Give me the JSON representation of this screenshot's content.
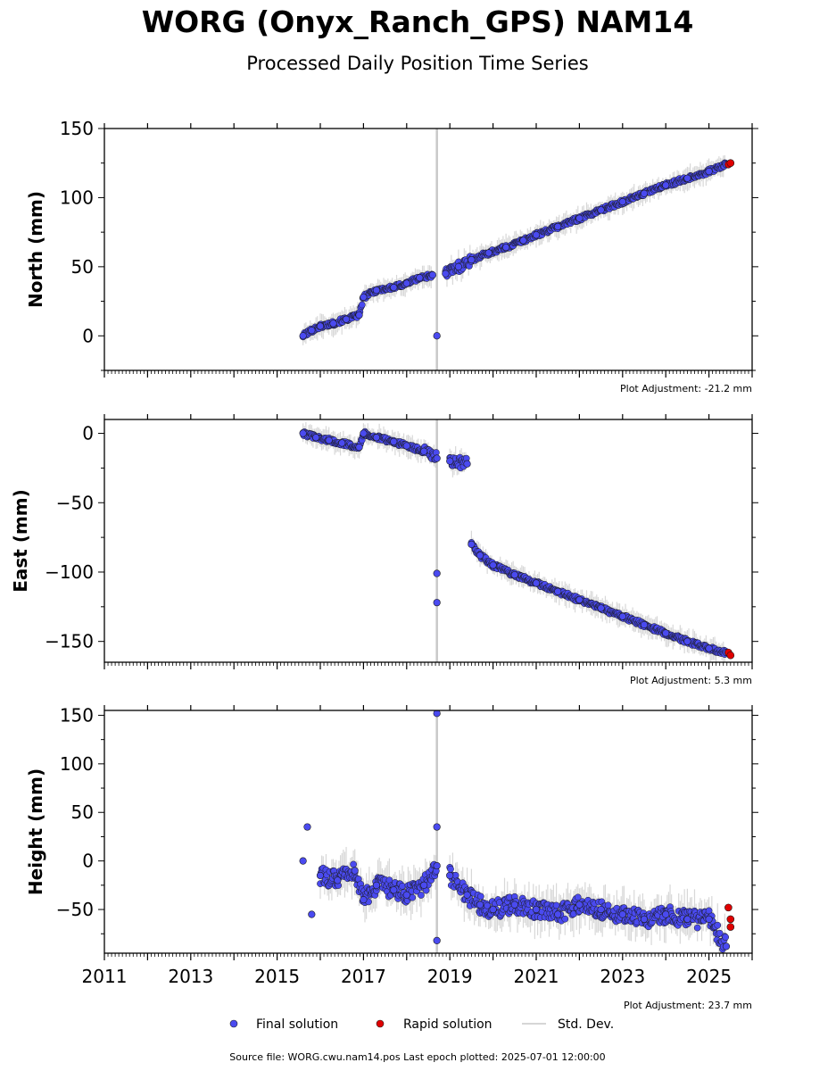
{
  "title": "WORG (Onyx_Ranch_GPS) NAM14",
  "subtitle": "Processed Daily Position Time Series",
  "legend": {
    "final": "Final solution",
    "rapid": "Rapid solution",
    "stddev": "Std. Dev.",
    "placement": "bottom-center"
  },
  "footer": "Source file: WORG.cwu.nam14.pos  Last epoch plotted: 2025-07-01 12:00:00",
  "colors": {
    "final": "#4a4af0",
    "rapid": "#e00000",
    "stddev": "#c8c8c8"
  },
  "chart_data": [
    {
      "type": "scatter",
      "ylabel": "North (mm)",
      "ylim": [
        -25,
        150
      ],
      "yticks": [
        0,
        50,
        100,
        150
      ],
      "xlim": [
        2011,
        2026
      ],
      "adjustment": "Plot Adjustment: -21.2 mm",
      "series": [
        {
          "name": "Final solution",
          "points": [
            [
              2015.6,
              0
            ],
            [
              2015.8,
              4
            ],
            [
              2016.0,
              7
            ],
            [
              2016.3,
              9
            ],
            [
              2016.6,
              12
            ],
            [
              2016.9,
              15
            ],
            [
              2017.0,
              28
            ],
            [
              2017.3,
              33
            ],
            [
              2017.7,
              35
            ],
            [
              2018.0,
              38
            ],
            [
              2018.3,
              42
            ],
            [
              2018.6,
              44
            ],
            [
              2018.7,
              0
            ],
            [
              2018.9,
              45
            ],
            [
              2019.2,
              50
            ],
            [
              2019.5,
              55
            ],
            [
              2019.9,
              60
            ],
            [
              2020.3,
              64
            ],
            [
              2020.7,
              69
            ],
            [
              2021.0,
              73
            ],
            [
              2021.5,
              79
            ],
            [
              2022.0,
              85
            ],
            [
              2022.5,
              91
            ],
            [
              2023.0,
              97
            ],
            [
              2023.5,
              103
            ],
            [
              2024.0,
              109
            ],
            [
              2024.5,
              114
            ],
            [
              2025.0,
              119
            ],
            [
              2025.4,
              124
            ]
          ]
        },
        {
          "name": "Rapid solution",
          "points": [
            [
              2025.45,
              124
            ],
            [
              2025.5,
              125
            ]
          ]
        }
      ]
    },
    {
      "type": "scatter",
      "ylabel": "East (mm)",
      "ylim": [
        -165,
        10
      ],
      "yticks": [
        0,
        -50,
        -100,
        -150
      ],
      "xlim": [
        2011,
        2026
      ],
      "adjustment": "Plot Adjustment: 5.3 mm",
      "series": [
        {
          "name": "Final solution",
          "points": [
            [
              2015.6,
              0
            ],
            [
              2015.9,
              -3
            ],
            [
              2016.2,
              -5
            ],
            [
              2016.5,
              -7
            ],
            [
              2016.9,
              -10
            ],
            [
              2017.0,
              0
            ],
            [
              2017.3,
              -3
            ],
            [
              2017.7,
              -6
            ],
            [
              2018.0,
              -9
            ],
            [
              2018.4,
              -13
            ],
            [
              2018.7,
              -18
            ],
            [
              2018.7,
              -122
            ],
            [
              2018.7,
              -101
            ],
            [
              2019.0,
              -20
            ],
            [
              2019.4,
              -22
            ],
            [
              2019.5,
              -80
            ],
            [
              2019.7,
              -88
            ],
            [
              2020.0,
              -95
            ],
            [
              2020.5,
              -102
            ],
            [
              2021.0,
              -108
            ],
            [
              2021.5,
              -114
            ],
            [
              2022.0,
              -120
            ],
            [
              2022.5,
              -126
            ],
            [
              2023.0,
              -132
            ],
            [
              2023.5,
              -138
            ],
            [
              2024.0,
              -144
            ],
            [
              2024.5,
              -150
            ],
            [
              2025.0,
              -155
            ],
            [
              2025.4,
              -158
            ]
          ]
        },
        {
          "name": "Rapid solution",
          "points": [
            [
              2025.45,
              -158
            ],
            [
              2025.5,
              -160
            ]
          ]
        }
      ]
    },
    {
      "type": "scatter",
      "ylabel": "Height (mm)",
      "ylim": [
        -95,
        155
      ],
      "yticks": [
        -50,
        0,
        50,
        100,
        150
      ],
      "xlim": [
        2011,
        2026
      ],
      "xticks": [
        "2011",
        "2013",
        "2015",
        "2017",
        "2019",
        "2021",
        "2023",
        "2025"
      ],
      "adjustment": "Plot Adjustment: 23.7 mm",
      "series": [
        {
          "name": "Final solution",
          "points": [
            [
              2015.6,
              0
            ],
            [
              2015.7,
              35
            ],
            [
              2015.8,
              -55
            ],
            [
              2016.0,
              -15
            ],
            [
              2016.4,
              -20
            ],
            [
              2016.8,
              -10
            ],
            [
              2017.0,
              -40
            ],
            [
              2017.3,
              -25
            ],
            [
              2017.7,
              -30
            ],
            [
              2018.0,
              -35
            ],
            [
              2018.4,
              -25
            ],
            [
              2018.7,
              -5
            ],
            [
              2018.7,
              152
            ],
            [
              2018.7,
              35
            ],
            [
              2018.7,
              -82
            ],
            [
              2019.0,
              -15
            ],
            [
              2019.4,
              -35
            ],
            [
              2019.7,
              -45
            ],
            [
              2020.0,
              -50
            ],
            [
              2020.5,
              -45
            ],
            [
              2021.0,
              -50
            ],
            [
              2021.5,
              -55
            ],
            [
              2022.0,
              -45
            ],
            [
              2022.5,
              -50
            ],
            [
              2023.0,
              -55
            ],
            [
              2023.5,
              -60
            ],
            [
              2024.0,
              -55
            ],
            [
              2024.5,
              -60
            ],
            [
              2025.0,
              -60
            ],
            [
              2025.4,
              -88
            ]
          ]
        },
        {
          "name": "Rapid solution",
          "points": [
            [
              2025.45,
              -48
            ],
            [
              2025.5,
              -60
            ],
            [
              2025.5,
              -68
            ]
          ]
        }
      ]
    }
  ]
}
